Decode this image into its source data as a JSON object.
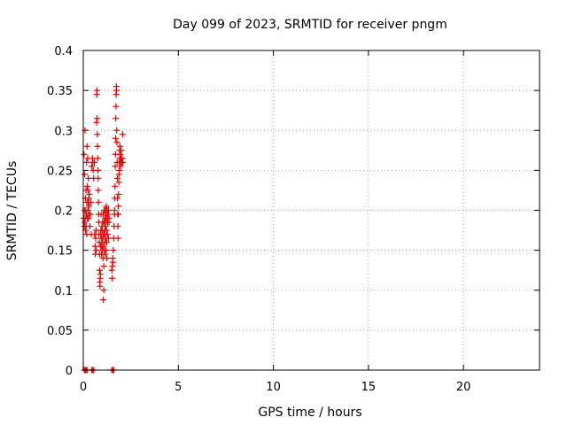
{
  "chart_data": {
    "type": "scatter",
    "title": "Day 099 of 2023, SRMTID for receiver pngm",
    "xlabel": "GPS time / hours",
    "ylabel": "SRMTID / TECUs",
    "xlim": [
      0,
      24
    ],
    "ylim": [
      0,
      0.4
    ],
    "xticks": [
      0,
      5,
      10,
      15,
      20
    ],
    "xtick_labels": [
      "0",
      "5",
      "10",
      "15",
      "20"
    ],
    "yticks": [
      0,
      0.05,
      0.1,
      0.15,
      0.2,
      0.25,
      0.3,
      0.35,
      0.4
    ],
    "ytick_labels": [
      "0",
      "0.05",
      "0.1",
      "0.15",
      "0.2",
      "0.25",
      "0.3",
      "0.35",
      "0.4"
    ],
    "grid": true,
    "marker": "+",
    "color": "#e00000",
    "series": [
      {
        "name": "SRMTID",
        "points": [
          [
            0.02,
            0.19
          ],
          [
            0.04,
            0.27
          ],
          [
            0.05,
            0.18
          ],
          [
            0.06,
            0.2
          ],
          [
            0.07,
            0.245
          ],
          [
            0.08,
            0.185
          ],
          [
            0.09,
            0.3
          ],
          [
            0.1,
            0.19
          ],
          [
            0.11,
            0.215
          ],
          [
            0.12,
            0.175
          ],
          [
            0.13,
            0.2
          ],
          [
            0.14,
            0.225
          ],
          [
            0.15,
            0.18
          ],
          [
            0.16,
            0.195
          ],
          [
            0.17,
            0.26
          ],
          [
            0.18,
            0.17
          ],
          [
            0.19,
            0.21
          ],
          [
            0.2,
            0.28
          ],
          [
            0.21,
            0.23
          ],
          [
            0.22,
            0.19
          ],
          [
            0.23,
            0.265
          ],
          [
            0.24,
            0.2
          ],
          [
            0.25,
            0.225
          ],
          [
            0.26,
            0.21
          ],
          [
            0.27,
            0.24
          ],
          [
            0.28,
            0.19
          ],
          [
            0.29,
            0.215
          ],
          [
            0.3,
            0.205
          ],
          [
            0.31,
            0.195
          ],
          [
            0.32,
            0.22
          ],
          [
            0.35,
            0.18
          ],
          [
            0.38,
            0.195
          ],
          [
            0.4,
            0.21
          ],
          [
            0.42,
            0.17
          ],
          [
            0.45,
            0.255
          ],
          [
            0.48,
            0.265
          ],
          [
            0.5,
            0.26
          ],
          [
            0.52,
            0.25
          ],
          [
            0.55,
            0.24
          ],
          [
            0.58,
            0.26
          ],
          [
            0.6,
            0.17
          ],
          [
            0.62,
            0.155
          ],
          [
            0.63,
            0.145
          ],
          [
            0.65,
            0.165
          ],
          [
            0.67,
            0.175
          ],
          [
            0.68,
            0.15
          ],
          [
            0.7,
            0.31
          ],
          [
            0.71,
            0.345
          ],
          [
            0.72,
            0.35
          ],
          [
            0.73,
            0.315
          ],
          [
            0.74,
            0.295
          ],
          [
            0.75,
            0.28
          ],
          [
            0.76,
            0.265
          ],
          [
            0.77,
            0.25
          ],
          [
            0.78,
            0.24
          ],
          [
            0.79,
            0.225
          ],
          [
            0.8,
            0.21
          ],
          [
            0.81,
            0.195
          ],
          [
            0.82,
            0.185
          ],
          [
            0.83,
            0.17
          ],
          [
            0.84,
            0.16
          ],
          [
            0.85,
            0.145
          ],
          [
            0.86,
            0.125
          ],
          [
            0.87,
            0.11
          ],
          [
            0.88,
            0.105
          ],
          [
            0.89,
            0.115
          ],
          [
            0.9,
            0.12
          ],
          [
            0.91,
            0.155
          ],
          [
            0.92,
            0.17
          ],
          [
            0.93,
            0.175
          ],
          [
            0.94,
            0.195
          ],
          [
            0.95,
            0.165
          ],
          [
            0.96,
            0.145
          ],
          [
            0.97,
            0.155
          ],
          [
            0.98,
            0.18
          ],
          [
            0.99,
            0.16
          ],
          [
            1.0,
            0.175
          ],
          [
            1.01,
            0.15
          ],
          [
            1.02,
            0.185
          ],
          [
            1.03,
            0.165
          ],
          [
            1.04,
            0.14
          ],
          [
            1.05,
            0.195
          ],
          [
            1.06,
            0.155
          ],
          [
            1.07,
            0.17
          ],
          [
            1.08,
            0.13
          ],
          [
            1.09,
            0.185
          ],
          [
            1.1,
            0.2
          ],
          [
            1.11,
            0.17
          ],
          [
            1.12,
            0.15
          ],
          [
            1.13,
            0.175
          ],
          [
            1.14,
            0.16
          ],
          [
            1.15,
            0.19
          ],
          [
            1.16,
            0.18
          ],
          [
            1.17,
            0.2
          ],
          [
            1.18,
            0.165
          ],
          [
            1.19,
            0.185
          ],
          [
            1.2,
            0.195
          ],
          [
            1.21,
            0.205
          ],
          [
            1.22,
            0.175
          ],
          [
            1.23,
            0.16
          ],
          [
            1.24,
            0.14
          ],
          [
            1.25,
            0.19
          ],
          [
            1.26,
            0.2
          ],
          [
            1.27,
            0.17
          ],
          [
            1.28,
            0.185
          ],
          [
            1.3,
            0.195
          ],
          [
            1.32,
            0.165
          ],
          [
            1.33,
            0.2
          ],
          [
            1.35,
            0.185
          ],
          [
            1.36,
            0.19
          ],
          [
            1.05,
            0.088
          ],
          [
            1.08,
            0.1
          ],
          [
            1.15,
            0.145
          ],
          [
            1.2,
            0.15
          ],
          [
            1.5,
            0.125
          ],
          [
            1.52,
            0.115
          ],
          [
            1.53,
            0.13
          ],
          [
            1.55,
            0.14
          ],
          [
            1.56,
            0.135
          ],
          [
            1.58,
            0.15
          ],
          [
            1.6,
            0.165
          ],
          [
            1.62,
            0.18
          ],
          [
            1.64,
            0.2
          ],
          [
            1.65,
            0.195
          ],
          [
            1.66,
            0.215
          ],
          [
            1.67,
            0.23
          ],
          [
            1.68,
            0.255
          ],
          [
            1.69,
            0.27
          ],
          [
            1.7,
            0.29
          ],
          [
            1.71,
            0.315
          ],
          [
            1.72,
            0.33
          ],
          [
            1.73,
            0.345
          ],
          [
            1.74,
            0.355
          ],
          [
            1.75,
            0.35
          ],
          [
            1.76,
            0.3
          ],
          [
            1.77,
            0.285
          ],
          [
            1.78,
            0.26
          ],
          [
            1.79,
            0.24
          ],
          [
            1.8,
            0.215
          ],
          [
            1.81,
            0.195
          ],
          [
            1.82,
            0.18
          ],
          [
            1.83,
            0.165
          ],
          [
            1.84,
            0.195
          ],
          [
            1.85,
            0.205
          ],
          [
            1.86,
            0.22
          ],
          [
            1.87,
            0.235
          ],
          [
            1.88,
            0.245
          ],
          [
            1.89,
            0.25
          ],
          [
            1.9,
            0.26
          ],
          [
            1.91,
            0.275
          ],
          [
            1.92,
            0.265
          ],
          [
            1.93,
            0.28
          ],
          [
            1.94,
            0.26
          ],
          [
            1.95,
            0.27
          ],
          [
            1.96,
            0.255
          ],
          [
            1.98,
            0.265
          ],
          [
            2.0,
            0.275
          ],
          [
            2.02,
            0.26
          ],
          [
            2.05,
            0.265
          ],
          [
            2.07,
            0.295
          ],
          [
            2.08,
            0.26
          ],
          [
            0.05,
            0.0
          ],
          [
            0.1,
            0.0
          ],
          [
            0.15,
            0.0
          ],
          [
            0.2,
            0.0
          ],
          [
            0.45,
            0.0
          ],
          [
            0.5,
            0.0
          ],
          [
            0.55,
            0.0
          ],
          [
            1.5,
            0.0
          ],
          [
            1.55,
            0.0
          ],
          [
            1.6,
            0.0
          ]
        ]
      }
    ]
  }
}
